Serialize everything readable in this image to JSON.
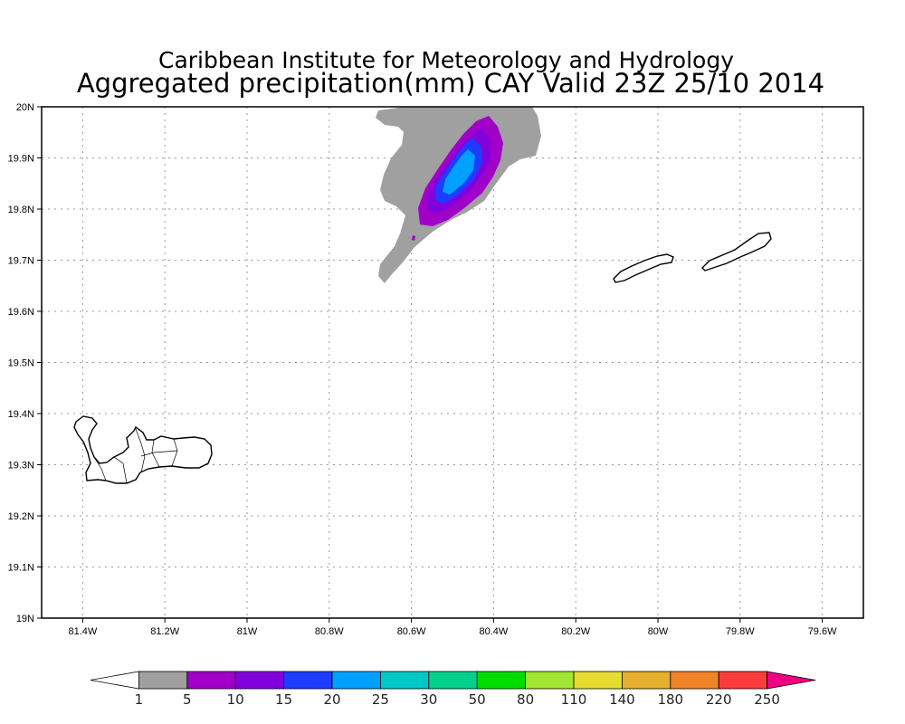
{
  "title": "Caribbean Institute for Meteorology and Hydrology",
  "subtitle": "Aggregated precipitation(mm) CAY Valid 23Z 25/10 2014",
  "map": {
    "lon_range": [
      -81.5,
      -79.5
    ],
    "lat_range": [
      19.0,
      20.0
    ],
    "grid": true,
    "x_ticks": [
      {
        "lon": -81.4,
        "label": "81.4W"
      },
      {
        "lon": -81.2,
        "label": "81.2W"
      },
      {
        "lon": -81.0,
        "label": "81W"
      },
      {
        "lon": -80.8,
        "label": "80.8W"
      },
      {
        "lon": -80.6,
        "label": "80.6W"
      },
      {
        "lon": -80.4,
        "label": "80.4W"
      },
      {
        "lon": -80.2,
        "label": "80.2W"
      },
      {
        "lon": -80.0,
        "label": "80W"
      },
      {
        "lon": -79.8,
        "label": "79.8W"
      },
      {
        "lon": -79.6,
        "label": "79.6W"
      }
    ],
    "y_ticks": [
      {
        "lat": 19.0,
        "label": "19N"
      },
      {
        "lat": 19.1,
        "label": "19.1N"
      },
      {
        "lat": 19.2,
        "label": "19.2N"
      },
      {
        "lat": 19.3,
        "label": "19.3N"
      },
      {
        "lat": 19.4,
        "label": "19.4N"
      },
      {
        "lat": 19.5,
        "label": "19.5N"
      },
      {
        "lat": 19.6,
        "label": "19.6N"
      },
      {
        "lat": 19.7,
        "label": "19.7N"
      },
      {
        "lat": 19.8,
        "label": "19.8N"
      },
      {
        "lat": 19.9,
        "label": "19.9N"
      },
      {
        "lat": 20.0,
        "label": "20N"
      }
    ]
  },
  "chart_data": {
    "type": "heatmap",
    "title": "Aggregated precipitation(mm) CAY Valid 23Z 25/10 2014",
    "x_range": [
      -81.5,
      -79.5
    ],
    "y_range": [
      19.0,
      20.0
    ],
    "grid": true,
    "features": [
      {
        "kind": "precipitation-cell",
        "center_lon": -80.48,
        "center_lat": 19.86,
        "max_level_mm": "20-25",
        "min_level_mm": 1
      }
    ],
    "colorbar": {
      "labels": [
        "1",
        "5",
        "10",
        "15",
        "20",
        "25",
        "30",
        "50",
        "80",
        "110",
        "140",
        "180",
        "220",
        "250"
      ],
      "colors": [
        "#ffffff",
        "#a0a0a0",
        "#a000c8",
        "#8200dc",
        "#1e3cff",
        "#00a0ff",
        "#00c8c8",
        "#00d28c",
        "#00dc00",
        "#a0e632",
        "#e6dc32",
        "#e6af2d",
        "#f08228",
        "#fa3c3c",
        "#f00082"
      ],
      "placement": "bottom"
    }
  }
}
